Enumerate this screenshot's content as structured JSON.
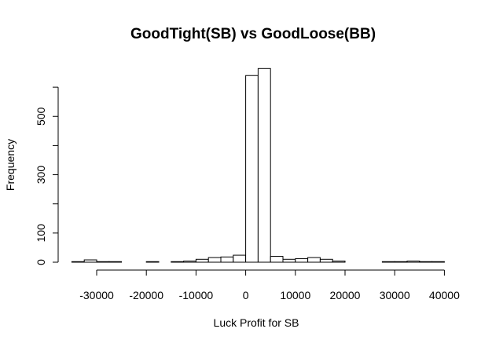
{
  "chart_data": {
    "type": "histogram",
    "title": "GoodTight(SB) vs GoodLoose(BB)",
    "xlabel": "Luck Profit for SB",
    "ylabel": "Frequency",
    "bin_width": 2500,
    "bins": [
      {
        "start": -35000,
        "end": -32500,
        "count": 2
      },
      {
        "start": -32500,
        "end": -30000,
        "count": 8
      },
      {
        "start": -30000,
        "end": -27500,
        "count": 2
      },
      {
        "start": -27500,
        "end": -25000,
        "count": 2
      },
      {
        "start": -25000,
        "end": -22500,
        "count": 0
      },
      {
        "start": -22500,
        "end": -20000,
        "count": 0
      },
      {
        "start": -20000,
        "end": -17500,
        "count": 2
      },
      {
        "start": -17500,
        "end": -15000,
        "count": 0
      },
      {
        "start": -15000,
        "end": -12500,
        "count": 2
      },
      {
        "start": -12500,
        "end": -10000,
        "count": 4
      },
      {
        "start": -10000,
        "end": -7500,
        "count": 10
      },
      {
        "start": -7500,
        "end": -5000,
        "count": 16
      },
      {
        "start": -5000,
        "end": -2500,
        "count": 18
      },
      {
        "start": -2500,
        "end": 0,
        "count": 24
      },
      {
        "start": 0,
        "end": 2500,
        "count": 640
      },
      {
        "start": 2500,
        "end": 5000,
        "count": 664
      },
      {
        "start": 5000,
        "end": 7500,
        "count": 20
      },
      {
        "start": 7500,
        "end": 10000,
        "count": 10
      },
      {
        "start": 10000,
        "end": 12500,
        "count": 12
      },
      {
        "start": 12500,
        "end": 15000,
        "count": 16
      },
      {
        "start": 15000,
        "end": 17500,
        "count": 10
      },
      {
        "start": 17500,
        "end": 20000,
        "count": 4
      },
      {
        "start": 20000,
        "end": 22500,
        "count": 0
      },
      {
        "start": 22500,
        "end": 25000,
        "count": 0
      },
      {
        "start": 25000,
        "end": 27500,
        "count": 0
      },
      {
        "start": 27500,
        "end": 30000,
        "count": 2
      },
      {
        "start": 30000,
        "end": 32500,
        "count": 2
      },
      {
        "start": 32500,
        "end": 35000,
        "count": 4
      },
      {
        "start": 35000,
        "end": 37500,
        "count": 2
      },
      {
        "start": 37500,
        "end": 40000,
        "count": 2
      }
    ],
    "x_ticks": [
      -30000,
      -20000,
      -10000,
      0,
      10000,
      20000,
      30000,
      40000
    ],
    "x_tick_labels": [
      "-30000",
      "-20000",
      "-10000",
      "0",
      "10000",
      "20000",
      "30000",
      "40000"
    ],
    "y_ticks": [
      0,
      100,
      300,
      500
    ],
    "y_tick_labels": [
      "0",
      "100",
      "300",
      "500"
    ],
    "xlim": [
      -35000,
      40000
    ],
    "ylim": [
      0,
      664
    ],
    "grid": false,
    "legend": "none"
  }
}
